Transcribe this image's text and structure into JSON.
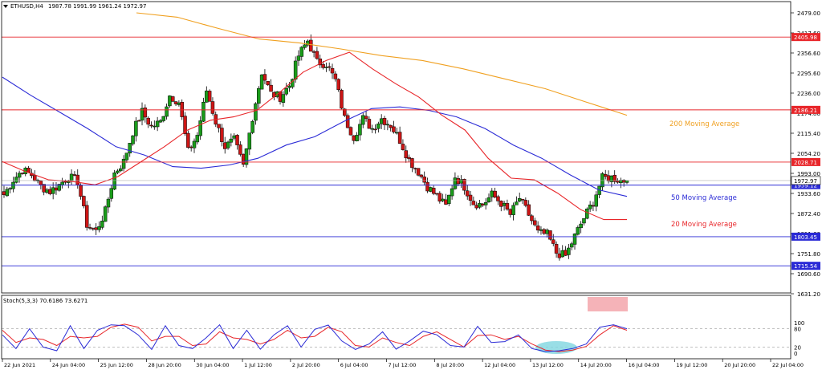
{
  "header": {
    "symbol": "ETHUSD,H4",
    "ohlc": "1987.78 1991.99 1961.24 1972.97"
  },
  "price_scale": [
    "2479.00",
    "2417.60",
    "2356.60",
    "2295.60",
    "2236.00",
    "2174.80",
    "2115.40",
    "2054.20",
    "1993.00",
    "1933.60",
    "1872.40",
    "1811.60",
    "1751.80",
    "1690.60",
    "1631.20"
  ],
  "stoch_scale": [
    "100",
    "80",
    "20",
    "0"
  ],
  "oscillator": {
    "label": "Stoch(5,3,3) 70.6186 73.6271",
    "levels": [
      20,
      80
    ]
  },
  "time_labels": [
    "22 Jun 2021",
    "24 Jun 04:00",
    "25 Jun 12:00",
    "28 Jun 20:00",
    "30 Jun 04:00",
    "1 Jul 12:00",
    "2 Jul 20:00",
    "6 Jul 04:00",
    "7 Jul 12:00",
    "8 Jul 20:00",
    "12 Jul 04:00",
    "13 Jul 12:00",
    "14 Jul 20:00",
    "16 Jul 04:00",
    "19 Jul 12:00",
    "20 Jul 20:00",
    "22 Jul 04:00"
  ],
  "levels": [
    {
      "label": "2405.98",
      "value": 2405.98,
      "color": "#e8262a"
    },
    {
      "label": "2186.21",
      "value": 2186.21,
      "color": "#e8262a"
    },
    {
      "label": "2028.71",
      "value": 2028.71,
      "color": "#e8262a"
    },
    {
      "label": "1959.12",
      "value": 1959.12,
      "color": "#2b2bd6"
    },
    {
      "label": "1803.45",
      "value": 1803.45,
      "color": "#2b2bd6"
    },
    {
      "label": "1715.54",
      "value": 1715.54,
      "color": "#2b2bd6"
    }
  ],
  "current_price": {
    "label": "1972.97",
    "value": 1972.97
  },
  "annotations": [
    {
      "text": "200 Moving Average",
      "color": "#f0a020"
    },
    {
      "text": "50 Moving Average",
      "color": "#2b2bd6"
    },
    {
      "text": "20 Moving Average",
      "color": "#e8262a"
    }
  ],
  "colors": {
    "bull": "#1a9c1a",
    "bear": "#cc1515",
    "ma200": "#f0a020",
    "ma50": "#2b2bd6",
    "ma20": "#e8262a",
    "stoch_k": "#2b2bd6",
    "stoch_d": "#e8262a",
    "highlight_oversold": "#7fd6e0",
    "highlight_overbought": "#f2a0a6"
  },
  "chart_data": {
    "type": "candlestick",
    "symbol": "ETHUSD",
    "timeframe": "H4",
    "ylim": [
      1631.2,
      2479.0
    ],
    "x_labels": [
      "22 Jun 2021",
      "24 Jun 04:00",
      "25 Jun 12:00",
      "28 Jun 20:00",
      "30 Jun 04:00",
      "1 Jul 12:00",
      "2 Jul 20:00",
      "6 Jul 04:00",
      "7 Jul 12:00",
      "8 Jul 20:00",
      "12 Jul 04:00",
      "13 Jul 12:00",
      "14 Jul 20:00",
      "16 Jul 04:00",
      "19 Jul 12:00",
      "20 Jul 20:00",
      "22 Jul 04:00"
    ],
    "close_anchors": [
      1930,
      1975,
      2005,
      1990,
      1955,
      1940,
      1960,
      1985,
      1970,
      1840,
      1820,
      1880,
      1995,
      2030,
      2120,
      2180,
      2135,
      2150,
      2230,
      2210,
      2060,
      2110,
      2245,
      2150,
      2075,
      2095,
      2015,
      2165,
      2300,
      2235,
      2225,
      2260,
      2350,
      2395,
      2330,
      2325,
      2275,
      2160,
      2105,
      2160,
      2130,
      2160,
      2140,
      2095,
      2035,
      2000,
      1955,
      1925,
      1895,
      1985,
      1955,
      1905,
      1900,
      1930,
      1905,
      1870,
      1920,
      1870,
      1815,
      1810,
      1755,
      1745,
      1805,
      1860,
      1910,
      1980,
      1982,
      1973
    ],
    "ma200": [
      2479,
      2466,
      2432,
      2400,
      2388,
      2370,
      2350,
      2335,
      2310,
      2280,
      2250,
      2210,
      2170
    ],
    "ma50": [
      2285,
      2230,
      2180,
      2130,
      2075,
      2050,
      2015,
      2010,
      2020,
      2040,
      2080,
      2105,
      2150,
      2190,
      2195,
      2185,
      2165,
      2130,
      2080,
      2040,
      1990,
      1945,
      1925
    ],
    "ma20": [
      2030,
      2000,
      1975,
      1970,
      1960,
      1985,
      2030,
      2075,
      2125,
      2155,
      2165,
      2185,
      2240,
      2300,
      2335,
      2360,
      2310,
      2265,
      2225,
      2170,
      2125,
      2040,
      1980,
      1975,
      1935,
      1885,
      1855,
      1855
    ],
    "stoch_k": [
      60,
      15,
      80,
      20,
      8,
      90,
      15,
      75,
      93,
      90,
      60,
      12,
      90,
      25,
      15,
      50,
      93,
      15,
      75,
      13,
      60,
      90,
      20,
      78,
      92,
      40,
      12,
      30,
      70,
      13,
      40,
      72,
      60,
      25,
      20,
      88,
      35,
      38,
      60,
      15,
      5,
      8,
      15,
      30,
      85,
      93,
      80
    ],
    "stoch_d": [
      75,
      35,
      50,
      45,
      25,
      55,
      50,
      55,
      85,
      95,
      85,
      40,
      55,
      55,
      25,
      30,
      70,
      50,
      45,
      30,
      45,
      75,
      50,
      55,
      85,
      70,
      25,
      20,
      50,
      35,
      25,
      55,
      70,
      45,
      20,
      58,
      60,
      45,
      55,
      30,
      10,
      5,
      10,
      22,
      60,
      90,
      75
    ]
  }
}
